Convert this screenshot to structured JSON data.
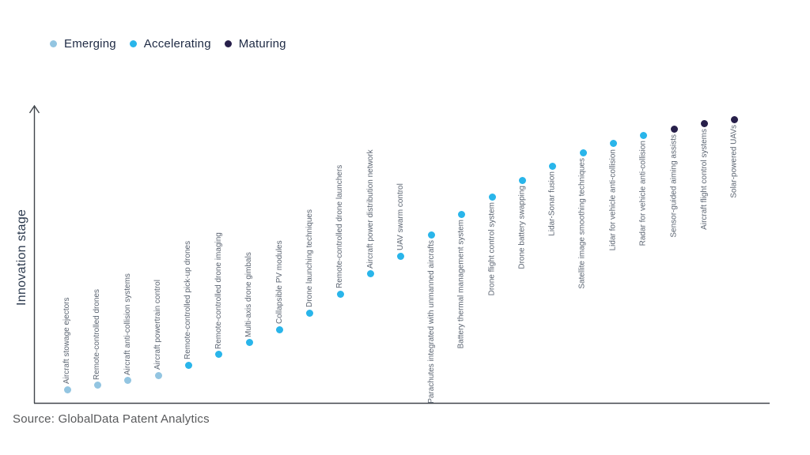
{
  "chart_data": {
    "type": "scatter",
    "title": "",
    "xlabel": "",
    "ylabel": "Innovation stage",
    "ylim": [
      0,
      100
    ],
    "grid": false,
    "legend_position": "top-left",
    "legend": [
      {
        "label": "Emerging",
        "color": "#93c5e1"
      },
      {
        "label": "Accelerating",
        "color": "#29b5ea"
      },
      {
        "label": "Maturing",
        "color": "#271f4a"
      }
    ],
    "points": [
      {
        "name": "Aircraft stowage ejectors",
        "stage": "Emerging",
        "value": 4.5
      },
      {
        "name": "Remote-controlled drones",
        "stage": "Emerging",
        "value": 5.9
      },
      {
        "name": "Aircraft anti-collision systems",
        "stage": "Emerging",
        "value": 7.5
      },
      {
        "name": "Aircraft powertrain control",
        "stage": "Emerging",
        "value": 9.3
      },
      {
        "name": "Remote-controlled pick-up drones",
        "stage": "Accelerating",
        "value": 12.8
      },
      {
        "name": "Remote-controlled drone imaging",
        "stage": "Accelerating",
        "value": 16.3
      },
      {
        "name": "Multi-axis drone gimbals",
        "stage": "Accelerating",
        "value": 20.3
      },
      {
        "name": "Collapsible PV modules",
        "stage": "Accelerating",
        "value": 24.8
      },
      {
        "name": "Drone launching techniques",
        "stage": "Accelerating",
        "value": 30.4
      },
      {
        "name": "Remote-controlled drone launchers",
        "stage": "Accelerating",
        "value": 36.8
      },
      {
        "name": "Aircraft power distribution network",
        "stage": "Accelerating",
        "value": 43.5
      },
      {
        "name": "UAV swarm control",
        "stage": "Accelerating",
        "value": 49.6
      },
      {
        "name": "Parachutes integrated with unmanned aircrafts",
        "stage": "Accelerating",
        "value": 56.8
      },
      {
        "name": "Battery thermal management system",
        "stage": "Accelerating",
        "value": 63.7
      },
      {
        "name": "Drone flight control system",
        "stage": "Accelerating",
        "value": 69.6
      },
      {
        "name": "Drone battery swapping",
        "stage": "Accelerating",
        "value": 75.2
      },
      {
        "name": "Lidar-Sonar fusion",
        "stage": "Accelerating",
        "value": 80.0
      },
      {
        "name": "Satellite image smoothing techniques",
        "stage": "Accelerating",
        "value": 84.5
      },
      {
        "name": "Lidar for vehicle anti-collision",
        "stage": "Accelerating",
        "value": 87.5
      },
      {
        "name": "Radar for vehicle anti-collision",
        "stage": "Accelerating",
        "value": 90.4
      },
      {
        "name": "Sensor-guided aiming assists",
        "stage": "Maturing",
        "value": 92.5
      },
      {
        "name": "Aircraft flight control systems",
        "stage": "Maturing",
        "value": 94.4
      },
      {
        "name": "Solar-powered UAVs",
        "stage": "Maturing",
        "value": 95.7
      }
    ]
  },
  "source": "Source: GlobalData Patent Analytics",
  "axis_color": "#41464c"
}
